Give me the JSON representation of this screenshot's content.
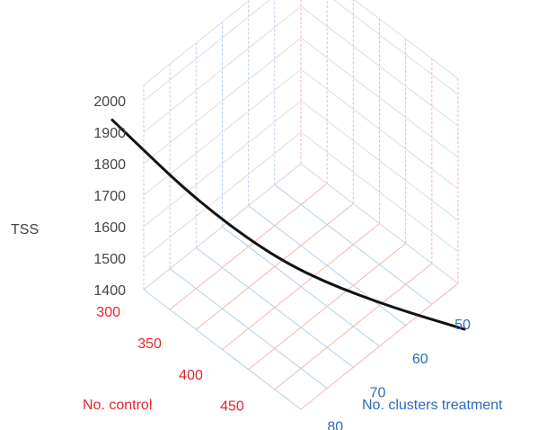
{
  "chart_data": {
    "type": "line",
    "title": "",
    "zlabel": "TSS",
    "xlabel": "No. control",
    "ylabel": "No. clusters treatment",
    "ztick_labels": [
      "1400",
      "1500",
      "1600",
      "1700",
      "1800",
      "1900",
      "2000"
    ],
    "xtick_labels": [
      "300",
      "350",
      "400",
      "450"
    ],
    "ytick_labels": [
      "50",
      "60",
      "70",
      "80"
    ],
    "zlim": [
      1400,
      2000
    ],
    "grid": true,
    "series": [
      {
        "color": "#111111",
        "points": [
          {
            "t": 0.0,
            "tss": 2050
          },
          {
            "t": 0.1,
            "tss": 1945
          },
          {
            "t": 0.2,
            "tss": 1842
          },
          {
            "t": 0.3,
            "tss": 1752
          },
          {
            "t": 0.4,
            "tss": 1672
          },
          {
            "t": 0.5,
            "tss": 1605
          },
          {
            "t": 0.6,
            "tss": 1553
          },
          {
            "t": 0.7,
            "tss": 1511
          },
          {
            "t": 0.8,
            "tss": 1474
          },
          {
            "t": 0.9,
            "tss": 1441
          },
          {
            "t": 1.0,
            "tss": 1410
          }
        ]
      }
    ],
    "colors": {
      "z_axis": "#444444",
      "x_axis": "#e3262b",
      "y_axis": "#2a6bbf",
      "grid_x": "#f2b7b9",
      "grid_y": "#b8d0ea",
      "grid_z": "#dddddd",
      "curve": "#111111"
    }
  }
}
